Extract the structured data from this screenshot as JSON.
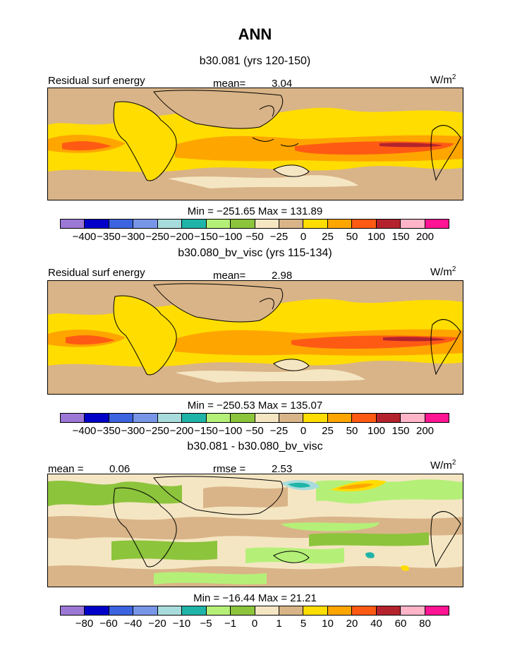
{
  "chart_data": {
    "type": "heatmap",
    "title": "ANN",
    "panels": [
      {
        "id": "panel-1",
        "subtitle": "b30.081 (yrs 120-150)",
        "field_label": "Residual surf energy",
        "mean_label": "mean=",
        "mean_value": "3.04",
        "units_base": "W/m",
        "units_exp": "2",
        "minmax_text": "Min = −251.65 Max = 131.89",
        "min": -251.65,
        "max": 131.89,
        "levels": [
          "−400",
          "−350",
          "−300",
          "−250",
          "−200",
          "−150",
          "−100",
          "−50",
          "−25",
          "0",
          "25",
          "50",
          "100",
          "150",
          "200"
        ]
      },
      {
        "id": "panel-2",
        "subtitle": "b30.080_bv_visc (yrs 115-134)",
        "field_label": "Residual surf energy",
        "mean_label": "mean=",
        "mean_value": "2.98",
        "units_base": "W/m",
        "units_exp": "2",
        "minmax_text": "Min = −250.53 Max = 135.07",
        "min": -250.53,
        "max": 135.07,
        "levels": [
          "−400",
          "−350",
          "−300",
          "−250",
          "−200",
          "−150",
          "−100",
          "−50",
          "−25",
          "0",
          "25",
          "50",
          "100",
          "150",
          "200"
        ]
      },
      {
        "id": "panel-3",
        "subtitle": "b30.081 - b30.080_bv_visc",
        "mean_label": "mean =",
        "mean_value": "0.06",
        "rmse_label": "rmse =",
        "rmse_value": "2.53",
        "units_base": "W/m",
        "units_exp": "2",
        "minmax_text": "Min = −16.44 Max = 21.21",
        "min": -16.44,
        "max": 21.21,
        "levels": [
          "−80",
          "−60",
          "−40",
          "−20",
          "−10",
          "−5",
          "−1",
          "0",
          "1",
          "5",
          "10",
          "20",
          "40",
          "60",
          "80"
        ]
      }
    ],
    "colorbar_colors": [
      "#9b77d6",
      "#0000c8",
      "#3c64e0",
      "#7896e8",
      "#a8dcdc",
      "#20b4a8",
      "#b4f078",
      "#8cc43c",
      "#f5e6c3",
      "#d9b488",
      "#ffdd00",
      "#ffa500",
      "#ff5a14",
      "#b4232d",
      "#ffb4c8",
      "#ff1493"
    ]
  }
}
